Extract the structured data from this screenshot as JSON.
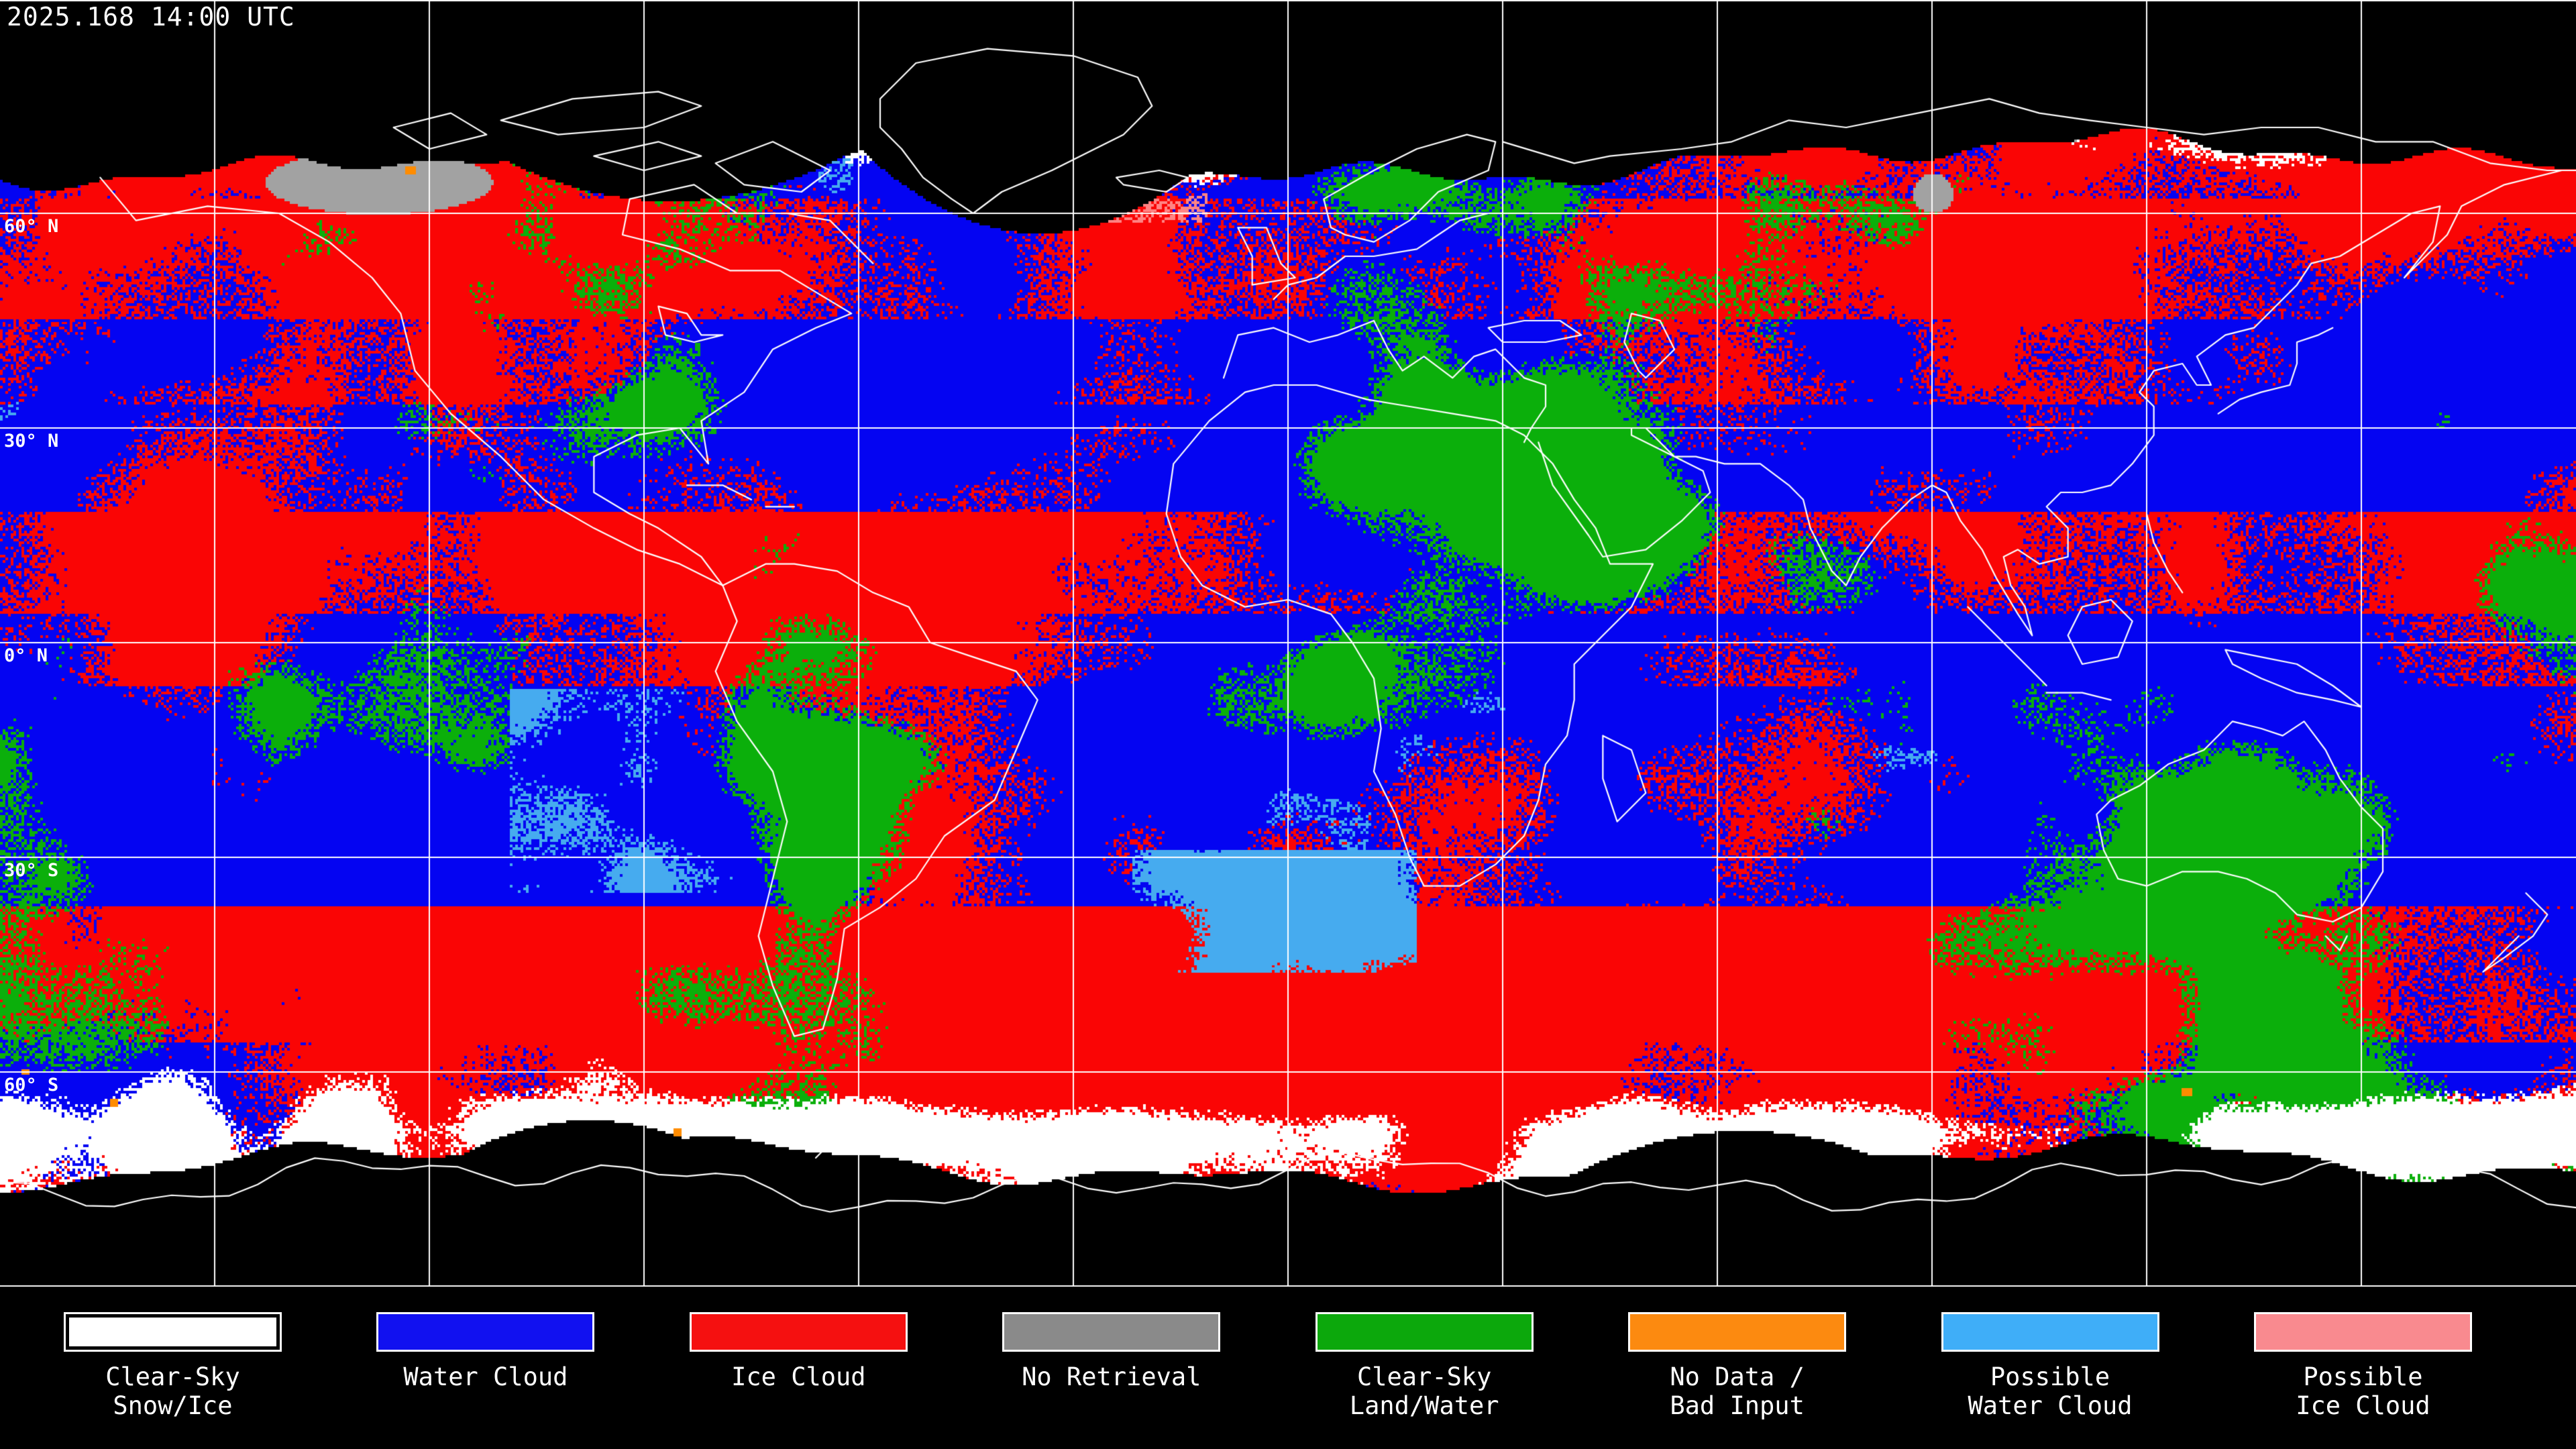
{
  "header": {
    "timestamp": "2025.168 14:00 UTC"
  },
  "map": {
    "latitude_labels": [
      "60° N",
      "30° N",
      "0° N",
      "30° S",
      "60° S"
    ],
    "gridline_color": "#FFFFFF",
    "coastline_color": "#FFFFFF",
    "background_color": "#000000",
    "class_colors": {
      "clear_sky_snow_ice": "#FFFFFF",
      "water_cloud": "#0404F2",
      "ice_cloud": "#FA0505",
      "no_retrieval": "#A2A2A2",
      "clear_sky_land_water": "#0BAF0B",
      "no_data_bad_input": "#FF8C00",
      "possible_water_cloud": "#46ABEF",
      "possible_ice_cloud": "#FF8484"
    }
  },
  "legend": {
    "items": [
      {
        "id": "clear-sky-snow-ice",
        "color": "#FFFFFF",
        "line1": "Clear-Sky",
        "line2": "Snow/Ice"
      },
      {
        "id": "water-cloud",
        "color": "#1111F0",
        "line1": "Water Cloud",
        "line2": ""
      },
      {
        "id": "ice-cloud",
        "color": "#F51010",
        "line1": "Ice Cloud",
        "line2": ""
      },
      {
        "id": "no-retrieval",
        "color": "#8A8A8A",
        "line1": "No Retrieval",
        "line2": ""
      },
      {
        "id": "clear-sky-land-water",
        "color": "#0CA80C",
        "line1": "Clear-Sky",
        "line2": "Land/Water"
      },
      {
        "id": "no-data-bad-input",
        "color": "#FC8A10",
        "line1": "No Data /",
        "line2": "Bad Input"
      },
      {
        "id": "possible-water-cloud",
        "color": "#3FAEF8",
        "line1": "Possible",
        "line2": "Water Cloud"
      },
      {
        "id": "possible-ice-cloud",
        "color": "#F98A8F",
        "line1": "Possible",
        "line2": "Ice Cloud"
      }
    ]
  }
}
